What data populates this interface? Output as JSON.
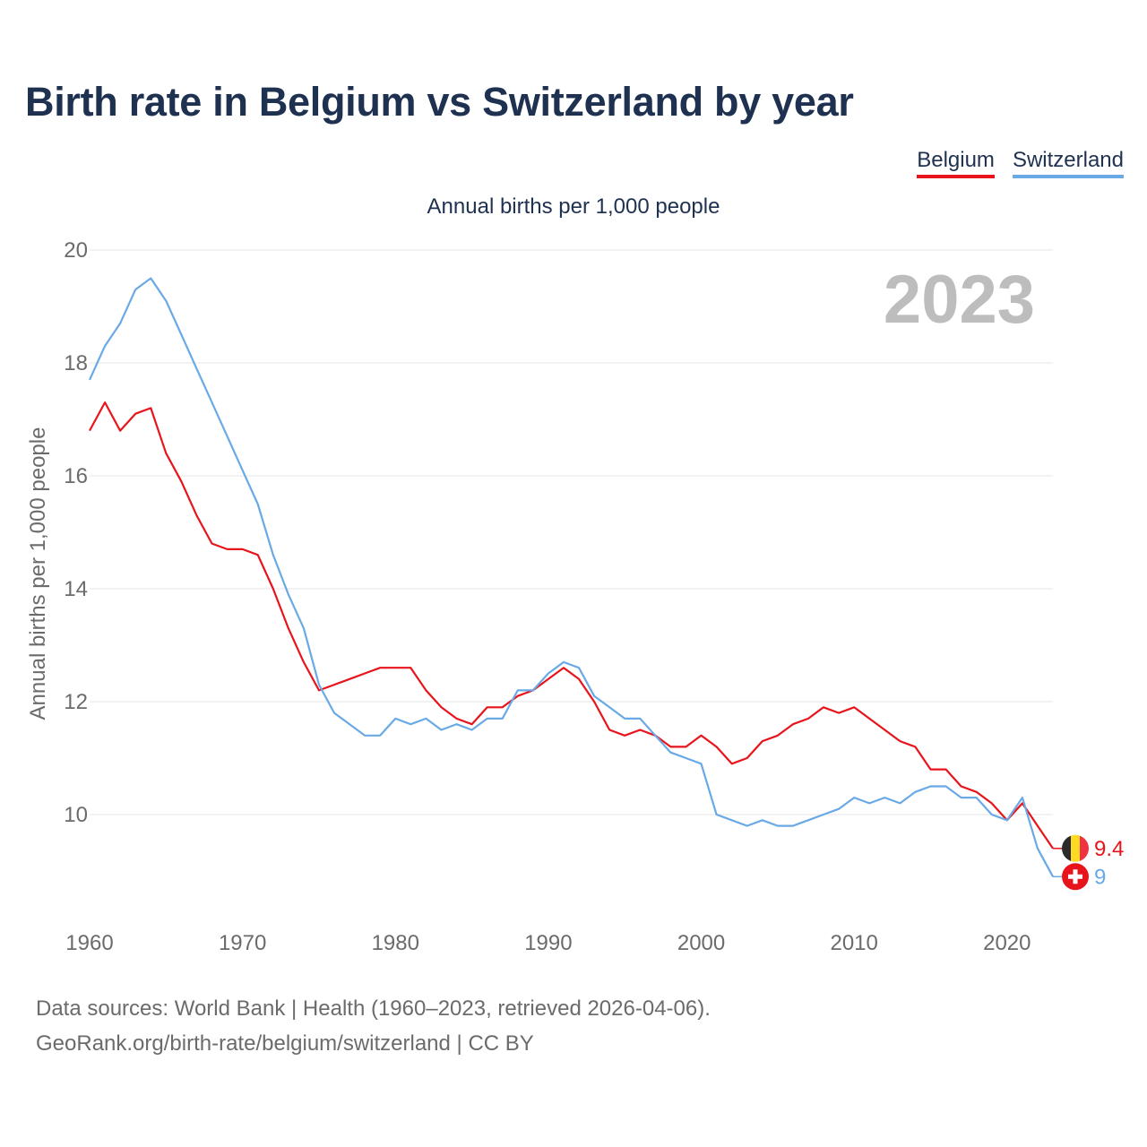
{
  "title": "Birth rate in Belgium vs Switzerland by year",
  "legend": {
    "belgium": "Belgium",
    "switzerland": "Switzerland"
  },
  "subtitle": "Annual births per 1,000 people",
  "year_label": "2023",
  "source": {
    "line1": "Data sources: World Bank | Health (1960–2023, retrieved 2026-04-06).",
    "line2": "GeoRank.org/birth-rate/belgium/switzerland | CC BY"
  },
  "colors": {
    "belgium": "#e8141b",
    "switzerland": "#69a9e6",
    "grid": "#e6e6e6",
    "axis_text": "#6b6b6b"
  },
  "chart_data": {
    "type": "line",
    "title": "Birth rate in Belgium vs Switzerland by year",
    "xlabel": "",
    "ylabel": "Annual births per 1,000 people",
    "xlim": [
      1960,
      2023
    ],
    "ylim": [
      8,
      20
    ],
    "x_ticks": [
      "1960",
      "1970",
      "1980",
      "1990",
      "2000",
      "2010",
      "2020"
    ],
    "y_ticks": [
      "10",
      "12",
      "14",
      "16",
      "18",
      "20"
    ],
    "x": [
      1960,
      1961,
      1962,
      1963,
      1964,
      1965,
      1966,
      1967,
      1968,
      1969,
      1970,
      1971,
      1972,
      1973,
      1974,
      1975,
      1976,
      1977,
      1978,
      1979,
      1980,
      1981,
      1982,
      1983,
      1984,
      1985,
      1986,
      1987,
      1988,
      1989,
      1990,
      1991,
      1992,
      1993,
      1994,
      1995,
      1996,
      1997,
      1998,
      1999,
      2000,
      2001,
      2002,
      2003,
      2004,
      2005,
      2006,
      2007,
      2008,
      2009,
      2010,
      2011,
      2012,
      2013,
      2014,
      2015,
      2016,
      2017,
      2018,
      2019,
      2020,
      2021,
      2022,
      2023
    ],
    "series": [
      {
        "name": "Belgium",
        "end_label": "9.4",
        "values": [
          16.8,
          17.3,
          16.8,
          17.1,
          17.2,
          16.4,
          15.9,
          15.3,
          14.8,
          14.7,
          14.7,
          14.6,
          14.0,
          13.3,
          12.7,
          12.2,
          12.3,
          12.4,
          12.5,
          12.6,
          12.6,
          12.6,
          12.2,
          11.9,
          11.7,
          11.6,
          11.9,
          11.9,
          12.1,
          12.2,
          12.4,
          12.6,
          12.4,
          12.0,
          11.5,
          11.4,
          11.5,
          11.4,
          11.2,
          11.2,
          11.4,
          11.2,
          10.9,
          11.0,
          11.3,
          11.4,
          11.6,
          11.7,
          11.9,
          11.8,
          11.9,
          11.7,
          11.5,
          11.3,
          11.2,
          10.8,
          10.8,
          10.5,
          10.4,
          10.2,
          9.9,
          10.2,
          9.8,
          9.4
        ]
      },
      {
        "name": "Switzerland",
        "end_label": "9",
        "values": [
          17.7,
          18.3,
          18.7,
          19.3,
          19.5,
          19.1,
          18.5,
          17.9,
          17.3,
          16.7,
          16.1,
          15.5,
          14.6,
          13.9,
          13.3,
          12.3,
          11.8,
          11.6,
          11.4,
          11.4,
          11.7,
          11.6,
          11.7,
          11.5,
          11.6,
          11.5,
          11.7,
          11.7,
          12.2,
          12.2,
          12.5,
          12.7,
          12.6,
          12.1,
          11.9,
          11.7,
          11.7,
          11.4,
          11.1,
          11.0,
          10.9,
          10.0,
          9.9,
          9.8,
          9.9,
          9.8,
          9.8,
          9.9,
          10.0,
          10.1,
          10.3,
          10.2,
          10.3,
          10.2,
          10.4,
          10.5,
          10.5,
          10.3,
          10.3,
          10.0,
          9.9,
          10.3,
          9.4,
          8.9
        ]
      }
    ]
  }
}
